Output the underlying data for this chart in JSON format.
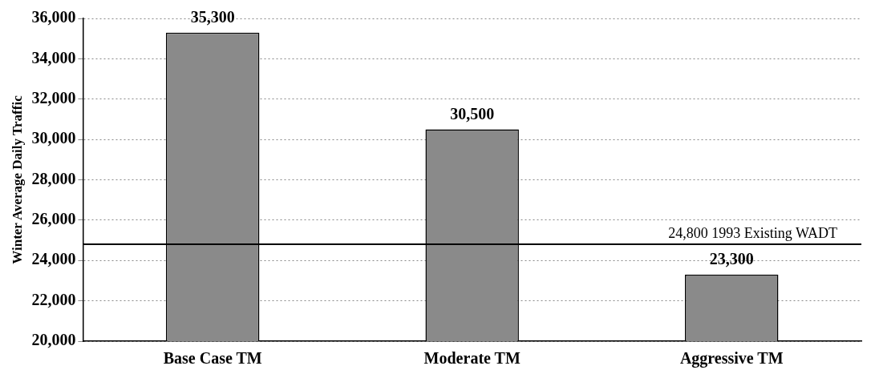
{
  "chart_data": {
    "type": "bar",
    "ylabel": "Winter Average Daily Traffic",
    "categories": [
      "Base Case TM",
      "Moderate TM",
      "Aggressive TM"
    ],
    "values": [
      35300,
      30500,
      23300
    ],
    "value_labels": [
      "35,300",
      "30,500",
      "23,300"
    ],
    "color": "#8a8a8a",
    "ylim": [
      20000,
      36000
    ],
    "yticks": [
      {
        "value": 20000,
        "label": "20,000"
      },
      {
        "value": 22000,
        "label": "22,000"
      },
      {
        "value": 24000,
        "label": "24,000"
      },
      {
        "value": 26000,
        "label": "26,000"
      },
      {
        "value": 28000,
        "label": "28,000"
      },
      {
        "value": 30000,
        "label": "30,000"
      },
      {
        "value": 32000,
        "label": "32,000"
      },
      {
        "value": 34000,
        "label": "34,000"
      },
      {
        "value": 36000,
        "label": "36,000"
      }
    ],
    "grid": "y",
    "legend": false,
    "ref_lines": [
      {
        "axis": "y",
        "value": 24800,
        "label": "24,800 1993 Existing WADT",
        "color": "#000000"
      }
    ]
  }
}
